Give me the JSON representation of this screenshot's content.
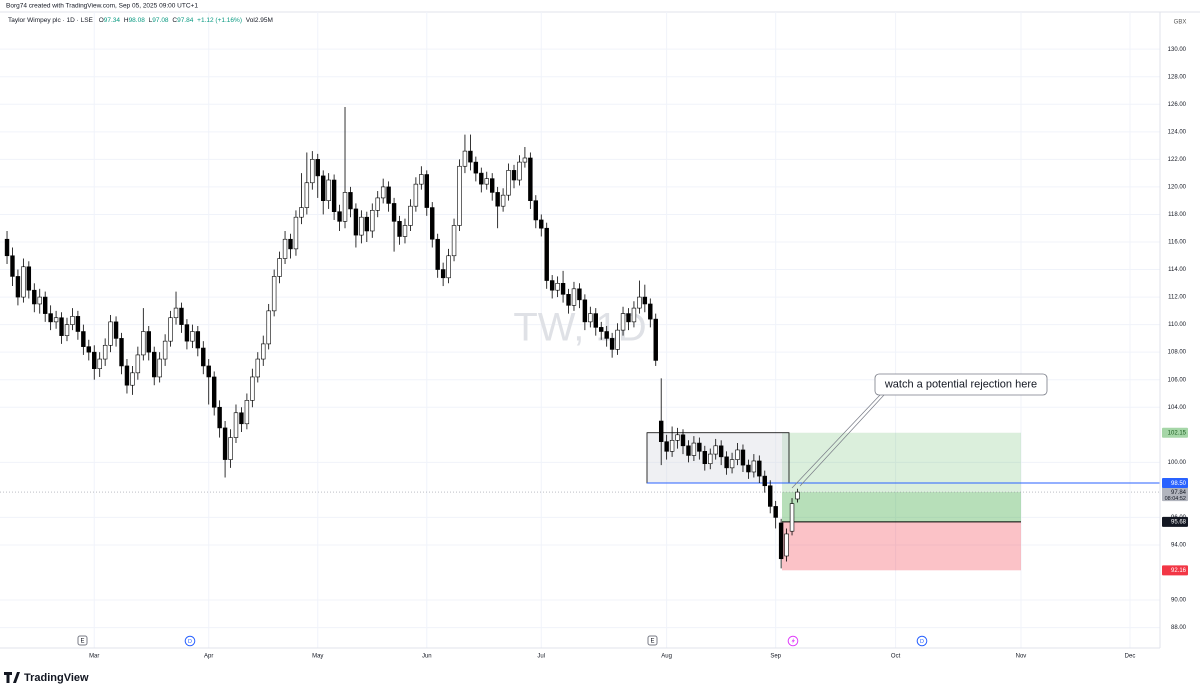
{
  "header": "Borg74 created with TradingView.com, Sep 05, 2025 09:00 UTC+1",
  "footer": "TradingView",
  "chart_data": {
    "type": "candlestick",
    "symbol": "Taylor Wimpey plc · 1D · LSE",
    "ohlc_labels": [
      "O",
      "H",
      "L",
      "C"
    ],
    "change": "+1.12 (+1.16%)",
    "volume": "Vol2.95M",
    "currency": "GBX",
    "watermark": "TW, 1D",
    "annotation": "watch a potential rejection here",
    "countdown": "08:04:52",
    "events": [
      "E",
      "D",
      "E",
      "D"
    ],
    "up_color": "#ffffff",
    "down_color": "#000000",
    "border_color": "#000000",
    "grid": true,
    "ylim": [
      87.1,
      132.7
    ],
    "yticks": [
      {
        "value": 130,
        "label": "130.00"
      },
      {
        "value": 128,
        "label": "128.00"
      },
      {
        "value": 126,
        "label": "126.00"
      },
      {
        "value": 124,
        "label": "124.00"
      },
      {
        "value": 122,
        "label": "122.00"
      },
      {
        "value": 120,
        "label": "120.00"
      },
      {
        "value": 118,
        "label": "118.00"
      },
      {
        "value": 116,
        "label": "116.00"
      },
      {
        "value": 114,
        "label": "114.00"
      },
      {
        "value": 112,
        "label": "112.00"
      },
      {
        "value": 110,
        "label": "110.00"
      },
      {
        "value": 108,
        "label": "108.00"
      },
      {
        "value": 106,
        "label": "106.00"
      },
      {
        "value": 104,
        "label": "104.00"
      },
      {
        "value": 100,
        "label": "100.00"
      },
      {
        "value": 96,
        "label": "96.00"
      },
      {
        "value": 94,
        "label": "94.00"
      },
      {
        "value": 90,
        "label": "90.00"
      },
      {
        "value": 88,
        "label": "88.00"
      }
    ],
    "position": {
      "target": 102.15,
      "entry": 95.68,
      "stop": 92.16
    },
    "level": {
      "value": 98.5,
      "label": "98.50"
    },
    "categories": [
      null,
      null,
      null,
      null,
      null,
      null,
      null,
      null,
      null,
      null,
      null,
      null,
      null,
      null,
      null,
      null,
      "Mar",
      null,
      null,
      null,
      null,
      null,
      null,
      null,
      null,
      null,
      null,
      null,
      null,
      null,
      null,
      null,
      null,
      null,
      null,
      null,
      null,
      "Apr",
      null,
      null,
      null,
      null,
      null,
      null,
      null,
      null,
      null,
      null,
      null,
      null,
      null,
      null,
      null,
      null,
      null,
      null,
      null,
      "May",
      null,
      null,
      null,
      null,
      null,
      null,
      null,
      null,
      null,
      null,
      null,
      null,
      null,
      null,
      null,
      null,
      null,
      null,
      null,
      "Jun",
      null,
      null,
      null,
      null,
      null,
      null,
      null,
      null,
      null,
      null,
      null,
      null,
      null,
      null,
      null,
      null,
      null,
      null,
      null,
      null,
      "Jul",
      null,
      null,
      null,
      null,
      null,
      null,
      null,
      null,
      null,
      null,
      null,
      null,
      null,
      null,
      null,
      null,
      null,
      null,
      null,
      null,
      null,
      null,
      "Aug",
      null,
      null,
      null,
      null,
      null,
      null,
      null,
      null,
      null,
      null,
      null,
      null,
      null,
      null,
      null,
      null,
      null,
      null,
      null,
      "Sep",
      null,
      null,
      null,
      null,
      null,
      null,
      null,
      null,
      null,
      null,
      null,
      null,
      null,
      null,
      null,
      null,
      null,
      null,
      null,
      null,
      null,
      "Oct",
      null,
      null,
      null,
      null,
      null,
      null,
      null,
      null,
      null,
      null,
      null,
      null,
      null,
      null,
      null,
      null,
      null,
      null,
      null,
      null,
      null,
      null,
      "Nov",
      null,
      null,
      null,
      null,
      null,
      null,
      null,
      null,
      null,
      null,
      null,
      null,
      null,
      null,
      null,
      null,
      null,
      null,
      null,
      "Dec",
      null,
      null,
      null,
      null,
      null
    ],
    "open": [
      116.2,
      115.0,
      113.5,
      112.0,
      114.2,
      112.5,
      111.5,
      112.0,
      110.8,
      110.2,
      110.5,
      109.2,
      110.0,
      110.6,
      109.5,
      108.4,
      108.0,
      106.8,
      107.5,
      108.5,
      110.2,
      109.0,
      107.0,
      105.6,
      106.5,
      107.8,
      109.5,
      108.0,
      106.2,
      107.5,
      108.8,
      110.5,
      111.2,
      110.0,
      108.8,
      109.5,
      108.3,
      107.0,
      106.2,
      104.0,
      102.5,
      100.2,
      101.8,
      103.6,
      102.8,
      104.5,
      106.2,
      107.5,
      108.6,
      111.0,
      113.5,
      114.8,
      116.2,
      115.5,
      117.8,
      118.5,
      120.3,
      122.0,
      120.8,
      119.0,
      120.5,
      118.2,
      117.5,
      119.6,
      118.4,
      116.5,
      117.8,
      116.8,
      118.3,
      119.2,
      120.0,
      118.8,
      117.5,
      116.4,
      117.2,
      118.6,
      120.2,
      120.9,
      118.5,
      116.2,
      114.0,
      113.4,
      115.0,
      117.2,
      121.5,
      122.6,
      121.8,
      121.0,
      120.2,
      120.6,
      119.6,
      118.6,
      119.4,
      121.2,
      120.5,
      121.8,
      122.1,
      119.0,
      117.6,
      117.0,
      113.2,
      112.5,
      113.0,
      112.2,
      111.4,
      112.6,
      111.8,
      110.2,
      110.8,
      109.8,
      109.5,
      109.0,
      108.2,
      109.6,
      110.8,
      110.2,
      111.2,
      112.0,
      111.5,
      110.4,
      103.0,
      101.5,
      100.8,
      101.6,
      102.0,
      101.2,
      100.5,
      101.4,
      100.8,
      99.9,
      100.6,
      101.2,
      100.4,
      99.6,
      100.2,
      100.9,
      99.8,
      99.3,
      100.1,
      99.0,
      98.3,
      96.8,
      95.6,
      93.2,
      95.0,
      97.34,
      null,
      null,
      null,
      null,
      null,
      null,
      null,
      null,
      null,
      null,
      null,
      null,
      null,
      null,
      null,
      null,
      null,
      null,
      null,
      null,
      null,
      null,
      null,
      null,
      null,
      null,
      null,
      null,
      null,
      null,
      null,
      null,
      null,
      null,
      null,
      null,
      null,
      null,
      null,
      null,
      null,
      null,
      null,
      null,
      null,
      null,
      null,
      null,
      null,
      null,
      null,
      null,
      null,
      null,
      null,
      null,
      null,
      null,
      null,
      null,
      null,
      null,
      null,
      null,
      null,
      null
    ],
    "high": [
      116.8,
      115.6,
      114.0,
      114.8,
      114.6,
      113.0,
      112.6,
      112.4,
      111.4,
      111.0,
      110.9,
      110.5,
      111.2,
      111.0,
      110.0,
      108.9,
      108.5,
      108.0,
      109.0,
      110.7,
      110.6,
      109.4,
      107.5,
      107.0,
      108.4,
      111.2,
      109.9,
      108.4,
      108.0,
      109.3,
      111.0,
      112.4,
      111.6,
      110.4,
      110.0,
      109.9,
      108.8,
      107.5,
      106.6,
      104.5,
      103.0,
      102.4,
      104.2,
      104.0,
      105.0,
      106.8,
      108.0,
      109.2,
      111.5,
      114.0,
      115.3,
      116.8,
      116.6,
      118.3,
      121.0,
      122.5,
      122.6,
      122.4,
      121.2,
      121.0,
      120.9,
      118.7,
      125.8,
      120.0,
      118.8,
      118.3,
      118.2,
      118.8,
      119.7,
      120.6,
      120.4,
      119.2,
      117.9,
      117.7,
      119.1,
      120.7,
      121.5,
      121.2,
      118.9,
      116.6,
      114.5,
      115.5,
      117.7,
      122.0,
      123.8,
      123.8,
      122.2,
      121.4,
      121.1,
      121.0,
      120.0,
      119.9,
      121.7,
      121.6,
      122.3,
      122.9,
      122.5,
      119.4,
      118.0,
      117.4,
      113.6,
      113.5,
      113.9,
      112.6,
      113.1,
      113.0,
      112.2,
      111.3,
      111.2,
      110.2,
      109.9,
      109.4,
      110.1,
      111.3,
      111.2,
      111.7,
      113.2,
      112.9,
      111.9,
      110.8,
      106.1,
      102.0,
      102.6,
      102.5,
      102.4,
      101.6,
      101.9,
      101.8,
      101.2,
      101.0,
      101.7,
      101.6,
      100.8,
      100.7,
      101.4,
      101.3,
      100.2,
      100.6,
      100.5,
      99.4,
      98.7,
      97.2,
      95.9,
      95.2,
      97.4,
      98.08,
      null,
      null,
      null,
      null,
      null,
      null,
      null,
      null,
      null,
      null,
      null,
      null,
      null,
      null,
      null,
      null,
      null,
      null,
      null,
      null,
      null,
      null,
      null,
      null,
      null,
      null,
      null,
      null,
      null,
      null,
      null,
      null,
      null,
      null,
      null,
      null,
      null,
      null,
      null,
      null,
      null,
      null,
      null,
      null,
      null,
      null,
      null,
      null,
      null,
      null,
      null,
      null,
      null,
      null,
      null,
      null,
      null,
      null,
      null,
      null,
      null,
      null,
      null,
      null,
      null,
      null
    ],
    "low": [
      114.4,
      112.8,
      111.4,
      111.6,
      111.9,
      110.9,
      110.8,
      110.2,
      109.6,
      109.7,
      108.6,
      108.8,
      109.6,
      108.9,
      107.8,
      107.4,
      106.0,
      106.2,
      107.0,
      108.0,
      108.4,
      106.4,
      105.0,
      104.9,
      106.0,
      107.4,
      107.4,
      105.6,
      105.8,
      107.0,
      108.4,
      110.0,
      109.4,
      108.2,
      108.3,
      107.7,
      106.4,
      104.2,
      103.4,
      101.8,
      98.9,
      99.6,
      101.4,
      102.2,
      102.4,
      104.0,
      105.8,
      107.0,
      108.2,
      110.6,
      113.0,
      114.4,
      114.8,
      115.0,
      117.3,
      118.0,
      119.8,
      119.2,
      118.0,
      118.4,
      117.6,
      116.8,
      117.0,
      117.8,
      115.6,
      115.9,
      116.0,
      116.3,
      117.8,
      118.8,
      118.2,
      115.3,
      115.8,
      115.9,
      116.8,
      118.2,
      119.8,
      117.9,
      115.6,
      113.4,
      112.8,
      113.0,
      114.6,
      116.8,
      121.0,
      121.2,
      120.4,
      119.6,
      119.8,
      119.0,
      117.0,
      118.2,
      119.0,
      119.9,
      120.1,
      121.4,
      118.4,
      117.0,
      116.4,
      112.6,
      111.9,
      112.0,
      111.6,
      110.8,
      111.0,
      111.2,
      109.6,
      109.8,
      109.2,
      108.9,
      108.4,
      107.6,
      107.8,
      109.2,
      109.6,
      109.8,
      110.8,
      110.9,
      109.8,
      107.0,
      99.8,
      100.2,
      100.4,
      101.0,
      100.6,
      100.0,
      100.1,
      100.2,
      99.4,
      99.5,
      100.2,
      99.8,
      99.1,
      99.2,
      99.8,
      99.3,
      98.8,
      98.9,
      98.5,
      97.8,
      96.3,
      95.2,
      92.3,
      92.8,
      94.7,
      97.08,
      null,
      null,
      null,
      null,
      null,
      null,
      null,
      null,
      null,
      null,
      null,
      null,
      null,
      null,
      null,
      null,
      null,
      null,
      null,
      null,
      null,
      null,
      null,
      null,
      null,
      null,
      null,
      null,
      null,
      null,
      null,
      null,
      null,
      null,
      null,
      null,
      null,
      null,
      null,
      null,
      null,
      null,
      null,
      null,
      null,
      null,
      null,
      null,
      null,
      null,
      null,
      null,
      null,
      null,
      null,
      null,
      null,
      null,
      null,
      null,
      null,
      null,
      null,
      null,
      null,
      null
    ],
    "close": [
      115.0,
      113.5,
      112.0,
      114.2,
      112.5,
      111.5,
      112.0,
      110.8,
      110.2,
      110.5,
      109.2,
      110.0,
      110.6,
      109.5,
      108.4,
      108.0,
      106.8,
      107.5,
      108.5,
      110.2,
      109.0,
      107.0,
      105.6,
      106.5,
      107.8,
      109.5,
      108.0,
      106.2,
      107.5,
      108.8,
      110.5,
      111.2,
      110.0,
      108.8,
      109.5,
      108.3,
      107.0,
      106.2,
      104.0,
      102.5,
      100.2,
      101.8,
      103.6,
      102.8,
      104.5,
      106.2,
      107.5,
      108.6,
      111.0,
      113.5,
      114.8,
      116.2,
      115.5,
      117.8,
      118.5,
      120.3,
      122.0,
      120.8,
      119.0,
      120.5,
      118.2,
      117.5,
      119.6,
      118.4,
      116.5,
      117.8,
      116.8,
      118.3,
      119.2,
      120.0,
      118.8,
      117.5,
      116.4,
      117.2,
      118.6,
      120.2,
      120.9,
      118.5,
      116.2,
      114.0,
      113.4,
      115.0,
      117.2,
      121.5,
      122.6,
      121.8,
      121.0,
      120.2,
      120.6,
      119.6,
      118.6,
      119.4,
      121.2,
      120.5,
      121.8,
      122.1,
      119.0,
      117.6,
      117.0,
      113.2,
      112.5,
      113.0,
      112.2,
      111.4,
      112.6,
      111.8,
      110.2,
      110.8,
      109.8,
      109.5,
      109.0,
      108.2,
      109.6,
      110.8,
      110.2,
      111.2,
      112.0,
      111.5,
      110.4,
      107.4,
      101.5,
      100.8,
      101.6,
      102.0,
      101.2,
      100.5,
      101.4,
      100.8,
      99.9,
      100.6,
      101.2,
      100.4,
      99.6,
      100.2,
      100.9,
      99.8,
      99.3,
      100.1,
      99.0,
      98.3,
      96.8,
      96.0,
      93.0,
      94.8,
      97.0,
      97.84,
      null,
      null,
      null,
      null,
      null,
      null,
      null,
      null,
      null,
      null,
      null,
      null,
      null,
      null,
      null,
      null,
      null,
      null,
      null,
      null,
      null,
      null,
      null,
      null,
      null,
      null,
      null,
      null,
      null,
      null,
      null,
      null,
      null,
      null,
      null,
      null,
      null,
      null,
      null,
      null,
      null,
      null,
      null,
      null,
      null,
      null,
      null,
      null,
      null,
      null,
      null,
      null,
      null,
      null,
      null,
      null,
      null,
      null,
      null,
      null,
      null,
      null,
      null,
      null,
      null,
      null
    ]
  }
}
